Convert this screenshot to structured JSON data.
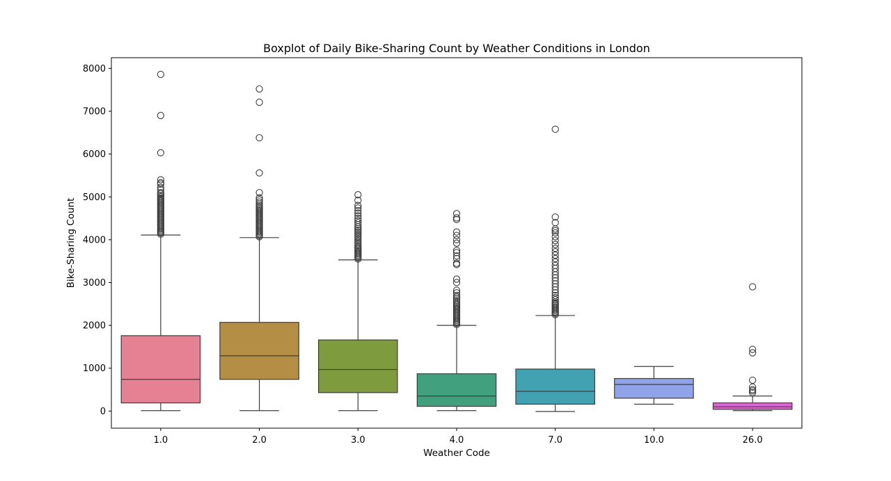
{
  "chart_data": {
    "type": "boxplot",
    "title": "Boxplot of Daily Bike-Sharing Count by Weather Conditions in London",
    "xlabel": "Weather Code",
    "ylabel": "Bike-Sharing Count",
    "ylim": [
      -400,
      8250
    ],
    "yticks": [
      0,
      1000,
      2000,
      3000,
      4000,
      5000,
      6000,
      7000,
      8000
    ],
    "grid": false,
    "legend": "none",
    "categories": [
      "1.0",
      "2.0",
      "3.0",
      "4.0",
      "7.0",
      "10.0",
      "26.0"
    ],
    "boxes": [
      {
        "category": "1.0",
        "color": "#e68193",
        "whisker_low": 10,
        "q1": 190,
        "median": 740,
        "q3": 1760,
        "whisker_high": 4110,
        "outliers": [
          4130,
          4160,
          4190,
          4220,
          4250,
          4280,
          4310,
          4340,
          4370,
          4400,
          4430,
          4460,
          4490,
          4520,
          4550,
          4580,
          4610,
          4640,
          4670,
          4700,
          4730,
          4760,
          4790,
          4820,
          4850,
          4880,
          4910,
          4940,
          4970,
          5000,
          5030,
          5070,
          5100,
          5160,
          5220,
          5300,
          5330,
          5400,
          6030,
          6900,
          7860
        ]
      },
      {
        "category": "2.0",
        "color": "#b38e44",
        "whisker_low": 10,
        "q1": 740,
        "median": 1290,
        "q3": 2070,
        "whisker_high": 4050,
        "outliers": [
          4070,
          4100,
          4130,
          4160,
          4190,
          4220,
          4250,
          4280,
          4310,
          4340,
          4370,
          4400,
          4430,
          4460,
          4490,
          4520,
          4550,
          4580,
          4610,
          4640,
          4670,
          4700,
          4730,
          4760,
          4790,
          4830,
          4880,
          4930,
          4980,
          5100,
          5560,
          6380,
          7210,
          7520
        ]
      },
      {
        "category": "3.0",
        "color": "#7e9b3e",
        "whisker_low": 10,
        "q1": 430,
        "median": 970,
        "q3": 1660,
        "whisker_high": 3530,
        "outliers": [
          3550,
          3580,
          3610,
          3640,
          3670,
          3700,
          3730,
          3760,
          3790,
          3820,
          3860,
          3900,
          3940,
          3980,
          4020,
          4060,
          4100,
          4140,
          4180,
          4220,
          4260,
          4300,
          4350,
          4400,
          4450,
          4500,
          4560,
          4620,
          4680,
          4740,
          4800,
          4920,
          5050
        ]
      },
      {
        "category": "4.0",
        "color": "#41a07e",
        "whisker_low": 10,
        "q1": 110,
        "median": 350,
        "q3": 870,
        "whisker_high": 2000,
        "outliers": [
          2020,
          2050,
          2080,
          2110,
          2140,
          2170,
          2200,
          2230,
          2260,
          2290,
          2320,
          2350,
          2380,
          2410,
          2440,
          2470,
          2500,
          2540,
          2580,
          2620,
          2660,
          2700,
          2760,
          2820,
          3000,
          3080,
          3420,
          3450,
          3560,
          3620,
          3700,
          3750,
          3920,
          4000,
          4100,
          4180,
          4470,
          4510,
          4610
        ]
      },
      {
        "category": "7.0",
        "color": "#42a2b1",
        "whisker_low": -10,
        "q1": 160,
        "median": 460,
        "q3": 980,
        "whisker_high": 2230,
        "outliers": [
          2250,
          2280,
          2310,
          2340,
          2370,
          2400,
          2430,
          2460,
          2490,
          2520,
          2550,
          2600,
          2650,
          2700,
          2760,
          2830,
          2900,
          2970,
          3040,
          3110,
          3180,
          3250,
          3330,
          3400,
          3480,
          3560,
          3640,
          3720,
          3800,
          3890,
          3980,
          4070,
          4160,
          4210,
          4250,
          4400,
          4530,
          6580
        ]
      },
      {
        "category": "10.0",
        "color": "#91a3e8",
        "whisker_low": 160,
        "q1": 300,
        "median": 620,
        "q3": 760,
        "whisker_high": 1040,
        "outliers": []
      },
      {
        "category": "26.0",
        "color": "#e364d8",
        "whisker_low": 10,
        "q1": 40,
        "median": 100,
        "q3": 190,
        "whisker_high": 350,
        "outliers": [
          430,
          470,
          500,
          560,
          720,
          1360,
          1440,
          2900
        ]
      }
    ]
  }
}
